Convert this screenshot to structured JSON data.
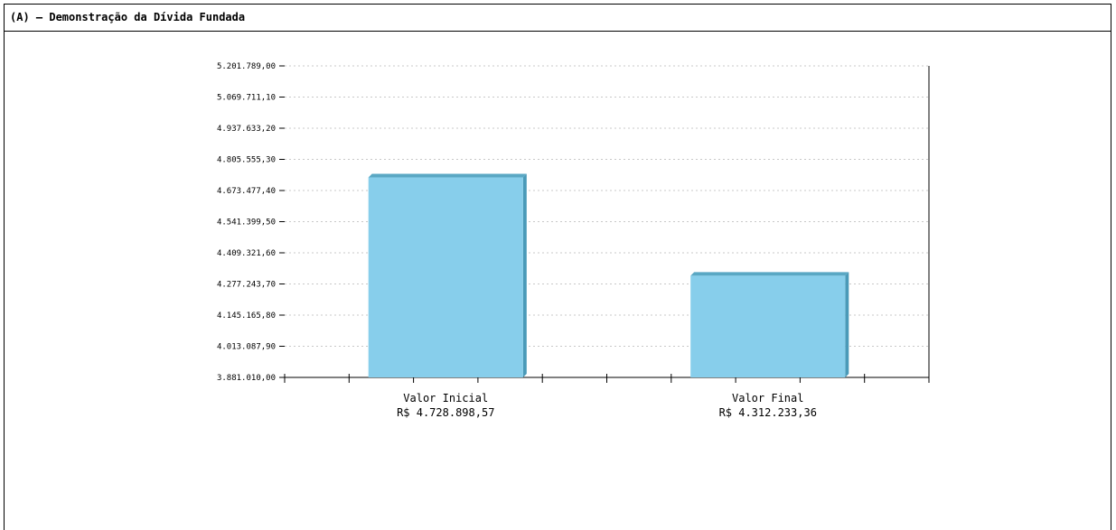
{
  "header": {
    "title": "(A) – Demonstração da Dívida Fundada"
  },
  "colors": {
    "bar_face": "#87ceeb",
    "bar_side": "#4a9ab8",
    "bar_top": "#5aa8c4",
    "grid": "#c8c8c8",
    "axis": "#000000"
  },
  "chart_data": {
    "type": "bar",
    "title": "",
    "xlabel": "",
    "ylabel": "",
    "categories": [
      "Valor Inicial",
      "Valor Final"
    ],
    "category_value_labels": [
      "R$ 4.728.898,57",
      "R$ 4.312.233,36"
    ],
    "values": [
      4728898.57,
      4312233.36
    ],
    "ylim": [
      3881010.0,
      5201789.0
    ],
    "yticks": [
      "3.881.010,00",
      "4.013.087,90",
      "4.145.165,80",
      "4.277.243,70",
      "4.409.321,60",
      "4.541.399,50",
      "4.673.477,40",
      "4.805.555,30",
      "4.937.633,20",
      "5.069.711,10",
      "5.201.789,00"
    ],
    "grid": true,
    "legend": "none"
  }
}
